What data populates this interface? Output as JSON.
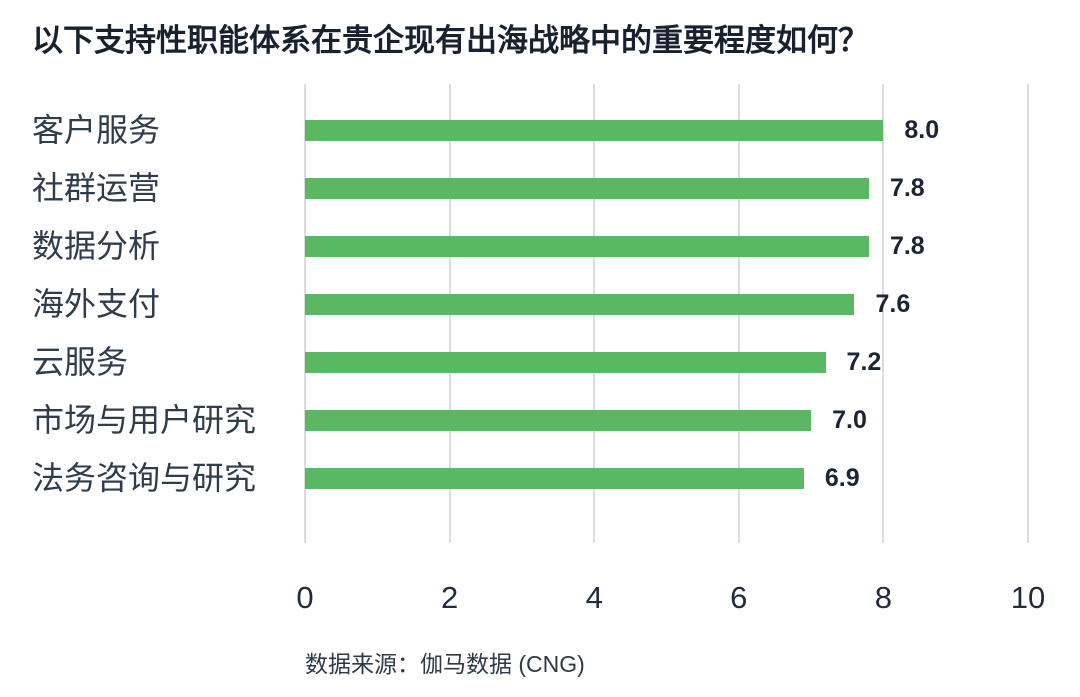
{
  "chart_data": {
    "type": "bar",
    "orientation": "horizontal",
    "title": "以下支持性职能体系在贵企现有出海战略中的重要程度如何？",
    "categories": [
      "客户服务",
      "社群运营",
      "数据分析",
      "海外支付",
      "云服务",
      "市场与用户研究",
      "法务咨询与研究"
    ],
    "values": [
      8.0,
      7.8,
      7.8,
      7.6,
      7.2,
      7.0,
      6.9
    ],
    "value_labels": [
      "8.0",
      "7.8",
      "7.8",
      "7.6",
      "7.2",
      "7.0",
      "6.9"
    ],
    "xlim": [
      0,
      10
    ],
    "x_ticks": [
      0,
      2,
      4,
      6,
      8,
      10
    ],
    "x_tick_labels": [
      "0",
      "2",
      "4",
      "6",
      "8",
      "10"
    ],
    "grid": true,
    "legend": false,
    "source": "数据来源：伽马数据 (CNG)",
    "colors": {
      "bar": "#5bb862",
      "gridline": "#dcdcdc",
      "background": "#ffffff",
      "title_text": "#18222f",
      "category_text": "#2e3c4c",
      "value_text": "#1b2533",
      "tick_text": "#1f2c3b",
      "source_text": "#2e3a48"
    }
  }
}
